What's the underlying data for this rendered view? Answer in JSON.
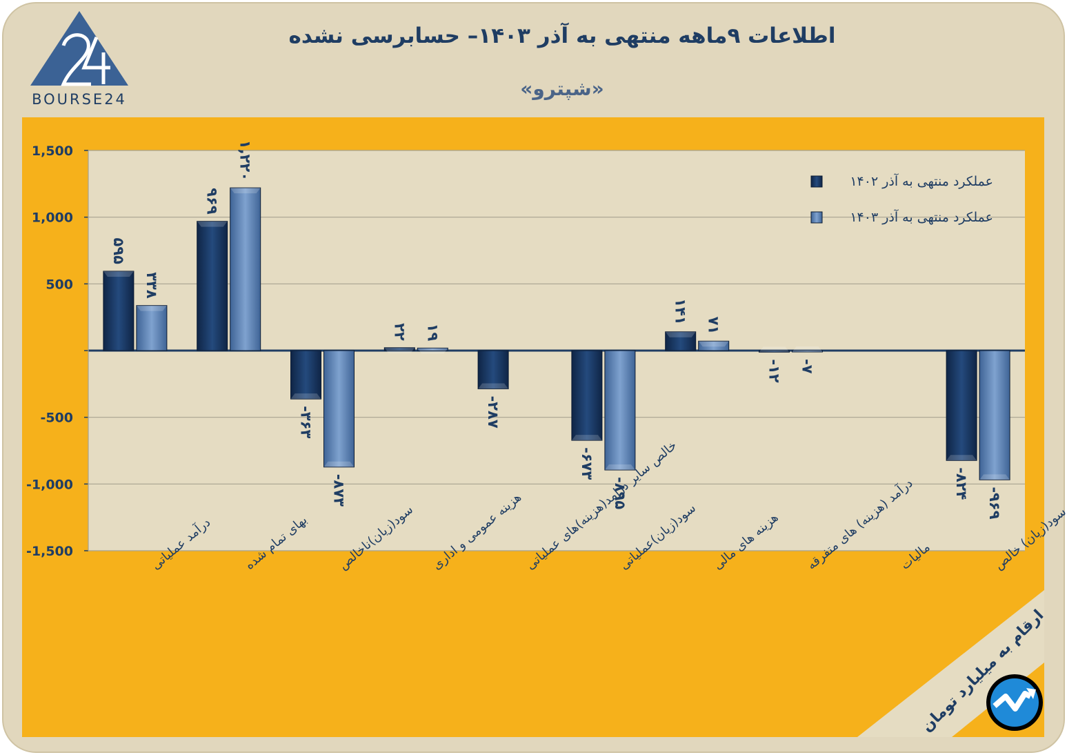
{
  "header": {
    "title": "اطلاعات ۹ماهه منتهی به آذر ۱۴۰۳– حسابرسی نشده",
    "subtitle": "«شپترو»",
    "logo_text": "BOURSE24"
  },
  "note": "ارقام به میلیارد تومان",
  "colors": {
    "background": "#e1d7bd",
    "plot_panel": "#f6b11b",
    "plot_area": "#e5dcc2",
    "series_1402": "#1c3a66",
    "series_1403": "#5a7fae",
    "text": "#1f3d63"
  },
  "chart_data": {
    "type": "bar",
    "categories": [
      "درآمد عملیاتی",
      "بهای تمام شده",
      "سود(زیان)ناخالص",
      "هزینه عمومی و اداری",
      "خالص سایر درامد(هزینه)های عملیاتی",
      "سود(زیان)عملیاتی",
      "هزینه های مالی",
      "درآمد (هزینه) های متفرقه",
      "مالیات",
      "سود(زیان) خالص"
    ],
    "series": [
      {
        "name": "عملکرد منتهی به آذر ۱۴۰۲",
        "values": [
          595,
          969,
          -363,
          22,
          -287,
          -673,
          141,
          -12,
          0,
          -824
        ],
        "labels": [
          "۵۹۵",
          "۹۶۹",
          "-۳۶۳",
          "۲۲",
          "-۲۸۷",
          "-۶۷۳",
          "۱۴۱",
          "-۱۲",
          "",
          "-۸۲۴"
        ]
      },
      {
        "name": "عملکرد منتهی به آذر ۱۴۰۳",
        "values": [
          338,
          1220,
          -873,
          19,
          0,
          -895,
          71,
          -7,
          0,
          -969
        ],
        "labels": [
          "۳۳۸",
          "۱,۲۲۰",
          "-۸۷۳",
          "۱۹",
          "",
          "-۸۹۵",
          "۷۱",
          "-۷",
          "",
          "-۹۶۹"
        ]
      }
    ],
    "ylim": [
      -1500,
      1500
    ],
    "yticks": [
      1500,
      1000,
      500,
      0,
      -500,
      -1000,
      -1500
    ],
    "ytick_labels": [
      "1,500",
      "1,000",
      "500",
      "",
      "-500",
      "-1,000",
      "-1,500"
    ],
    "grid": true,
    "legend": "top-right"
  }
}
